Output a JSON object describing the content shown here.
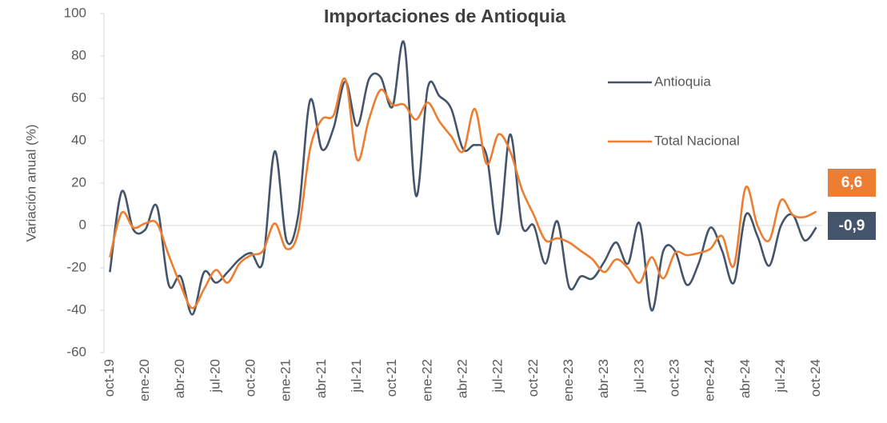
{
  "chart_data": {
    "type": "line",
    "title": "Importaciones de Antioquia",
    "y_label": "Variación anual (%)",
    "categories": [
      "oct-19",
      null,
      null,
      "ene-20",
      null,
      null,
      "abr-20",
      null,
      null,
      "jul-20",
      null,
      null,
      "oct-20",
      null,
      null,
      "ene-21",
      null,
      null,
      "abr-21",
      null,
      null,
      "jul-21",
      null,
      null,
      "oct-21",
      null,
      null,
      "ene-22",
      null,
      null,
      "abr-22",
      null,
      null,
      "jul-22",
      null,
      null,
      "oct-22",
      null,
      null,
      "ene-23",
      null,
      null,
      "abr-23",
      null,
      null,
      "jul-23",
      null,
      null,
      "oct-23",
      null,
      null,
      "ene-24",
      null,
      null,
      "abr-24",
      null,
      null,
      "jul-24",
      null,
      null,
      "oct-24"
    ],
    "series": [
      {
        "name": "Antioquia",
        "color": "#44546a",
        "values": [
          -22,
          16,
          -2,
          -2,
          9,
          -28,
          -24,
          -42,
          -22,
          -27,
          -22,
          -16,
          -13,
          -17,
          35,
          -7,
          5,
          59,
          36,
          46,
          68,
          47,
          69,
          70,
          56,
          86,
          14,
          65,
          61,
          55,
          36,
          38,
          33,
          -4,
          43,
          0,
          0,
          -18,
          2,
          -29,
          -24,
          -25,
          -17,
          -8,
          -18,
          1,
          -40,
          -12,
          -12,
          -28,
          -18,
          -1,
          -12,
          -27,
          5,
          -5,
          -19,
          0,
          5,
          -7,
          -0.9
        ],
        "value_labels": [
          null,
          null,
          null,
          null,
          null,
          null,
          null,
          null,
          null,
          null,
          null,
          null,
          null,
          null,
          null,
          null,
          null,
          null,
          null,
          null,
          null,
          null,
          null,
          null,
          null,
          null,
          null,
          null,
          null,
          null,
          null,
          null,
          null,
          null,
          null,
          null,
          null,
          null,
          null,
          null,
          null,
          null,
          null,
          null,
          null,
          null,
          null,
          null,
          null,
          null,
          null,
          null,
          null,
          null,
          null,
          null,
          null,
          null,
          null,
          null,
          "-0,9"
        ]
      },
      {
        "name": "Total Nacional",
        "color": "#ed7d31",
        "values": [
          -15,
          6,
          -1,
          1,
          1,
          -14,
          -28,
          -39,
          -30,
          -21,
          -27,
          -18,
          -14,
          -12,
          1,
          -11,
          -3,
          36,
          50,
          52,
          69,
          31,
          50,
          64,
          57,
          57,
          50,
          58,
          49,
          42,
          35,
          55,
          29,
          43,
          35,
          17,
          5,
          -7,
          -6,
          -8,
          -12,
          -16,
          -22,
          -16,
          -20,
          -27,
          -15,
          -25,
          -13,
          -14,
          -13,
          -11,
          -5,
          -19,
          18,
          0,
          -7,
          12,
          5,
          4,
          6.6
        ],
        "value_labels": [
          null,
          null,
          null,
          null,
          null,
          null,
          null,
          null,
          null,
          null,
          null,
          null,
          null,
          null,
          null,
          null,
          null,
          null,
          null,
          null,
          null,
          null,
          null,
          null,
          null,
          null,
          null,
          null,
          null,
          null,
          null,
          null,
          null,
          null,
          null,
          null,
          null,
          null,
          null,
          null,
          null,
          null,
          null,
          null,
          null,
          null,
          null,
          null,
          null,
          null,
          null,
          null,
          null,
          null,
          null,
          null,
          null,
          null,
          null,
          null,
          "6,6"
        ]
      }
    ],
    "ylim": [
      -60,
      100
    ],
    "yticks": [
      -60,
      -40,
      -20,
      0,
      20,
      40,
      60,
      80,
      100
    ],
    "grid": false
  }
}
